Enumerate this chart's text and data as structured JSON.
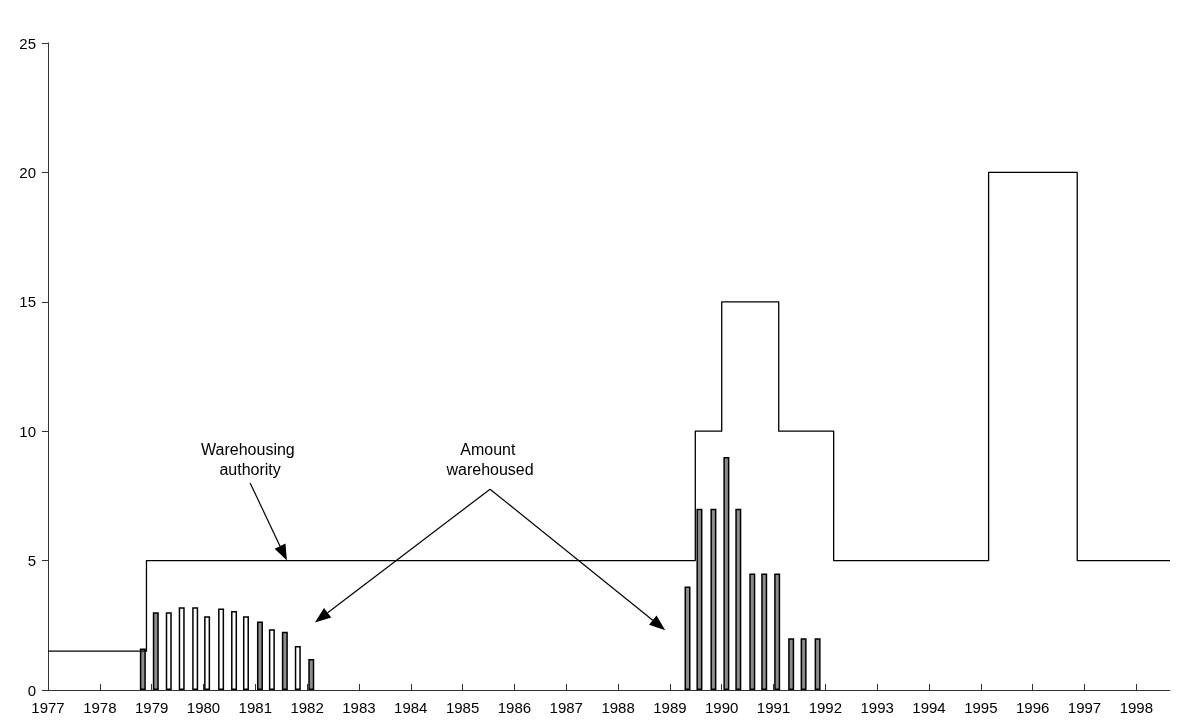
{
  "chart_data": {
    "type": "bar",
    "xlim": [
      1977,
      1998.65
    ],
    "xticks": [
      1977,
      1978,
      1979,
      1980,
      1981,
      1982,
      1983,
      1984,
      1985,
      1986,
      1987,
      1988,
      1989,
      1990,
      1991,
      1992,
      1993,
      1994,
      1995,
      1996,
      1997,
      1998
    ],
    "ylim": [
      0,
      25
    ],
    "yticks": [
      0,
      5,
      10,
      15,
      20,
      25
    ],
    "grid": false,
    "marker": "none",
    "line_style": "solid",
    "annotations": [
      "Warehousing authority",
      "Amount warehoused"
    ],
    "series": [
      {
        "type": "step",
        "color": "#000000",
        "x": [
          1977,
          1978.9,
          1989.49,
          1990.0,
          1991.1,
          1992.16,
          1995.15,
          1996.86,
          1998.65
        ],
        "values": [
          1.5,
          5,
          10,
          15,
          10,
          5,
          20,
          5,
          5
        ]
      },
      {
        "x": [
          1978.83,
          1979.08,
          1979.33,
          1979.58,
          1979.84,
          1980.07,
          1980.34,
          1980.59,
          1980.82,
          1981.09,
          1981.32,
          1981.57,
          1981.82,
          1982.08,
          1989.34,
          1989.57,
          1989.84,
          1990.09,
          1990.32,
          1990.59,
          1990.82,
          1991.07,
          1991.34,
          1991.58,
          1991.85
        ],
        "values": [
          1.6,
          3.0,
          3.0,
          3.2,
          3.2,
          2.85,
          3.15,
          3.05,
          2.85,
          2.65,
          2.35,
          2.25,
          1.7,
          1.2,
          4.0,
          7,
          7,
          9,
          7,
          4.5,
          4.5,
          4.5,
          2,
          2,
          2
        ],
        "colors": [
          "#8c8c8c",
          "#8c8c8c",
          "#ffffff",
          "#ffffff",
          "#ffffff",
          "#ffffff",
          "#ffffff",
          "#ffffff",
          "#ffffff",
          "#8c8c8c",
          "#ffffff",
          "#8c8c8c",
          "#ffffff",
          "#8c8c8c",
          "#8c8c8c",
          "#8c8c8c",
          "#8c8c8c",
          "#8c8c8c",
          "#8c8c8c",
          "#8c8c8c",
          "#8c8c8c",
          "#8c8c8c",
          "#8c8c8c",
          "#8c8c8c",
          "#8c8c8c"
        ]
      }
    ]
  }
}
